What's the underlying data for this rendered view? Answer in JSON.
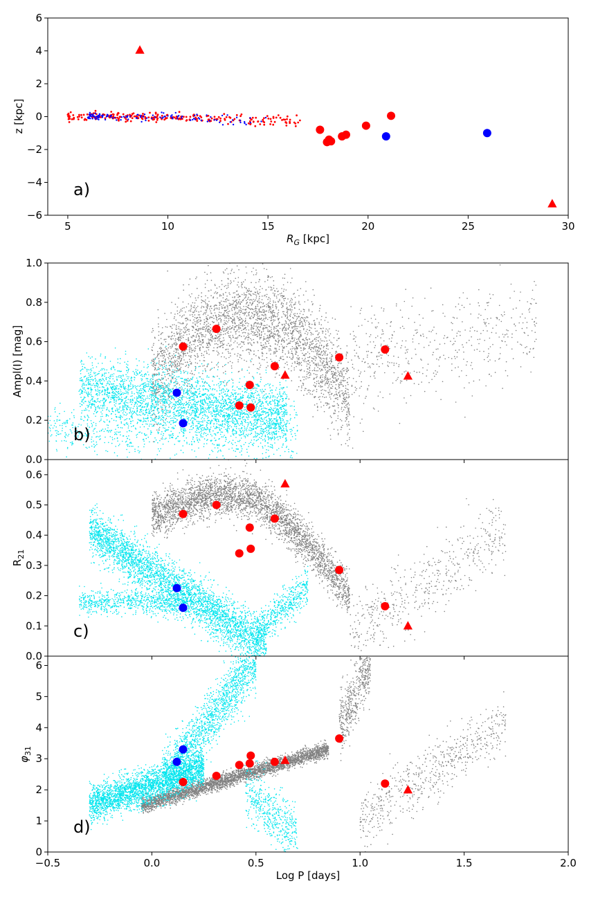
{
  "colors": {
    "background": "#cyan",
    "classical_cepheid_bg": "#808080",
    "anomalous_bg": "#00e5ee",
    "red_marker": "#ff0000",
    "blue_marker": "#0000ff"
  },
  "chart_data": [
    {
      "id": "a",
      "type": "scatter",
      "panel_label": "a)",
      "xlabel": "R_G [kpc]",
      "ylabel": "z [kpc]",
      "xlim": [
        4,
        30
      ],
      "ylim": [
        -6,
        6
      ],
      "xticks": [
        5,
        10,
        15,
        20,
        25,
        30
      ],
      "yticks": [
        -6,
        -4,
        -2,
        0,
        2,
        4,
        6
      ],
      "series": [
        {
          "marker": "circle",
          "color": "red",
          "size": "large",
          "points": [
            [
              17.6,
              -0.8
            ],
            [
              17.95,
              -1.55
            ],
            [
              18.05,
              -1.4
            ],
            [
              18.15,
              -1.5
            ],
            [
              18.7,
              -1.2
            ],
            [
              18.9,
              -1.1
            ],
            [
              19.9,
              -0.55
            ],
            [
              21.15,
              0.05
            ]
          ]
        },
        {
          "marker": "circle",
          "color": "blue",
          "size": "large",
          "points": [
            [
              20.9,
              -1.2
            ],
            [
              25.95,
              -1.0
            ]
          ]
        },
        {
          "marker": "triangle",
          "color": "red",
          "size": "large",
          "points": [
            [
              8.6,
              4.05
            ],
            [
              29.2,
              -5.3
            ]
          ]
        }
      ]
    },
    {
      "id": "b",
      "type": "scatter",
      "panel_label": "b)",
      "xlabel": "",
      "ylabel": "Ampl(I) [mag]",
      "xlim": [
        -0.5,
        2.0
      ],
      "ylim": [
        0.0,
        1.0
      ],
      "yticks": [
        0.0,
        0.2,
        0.4,
        0.6,
        0.8,
        1.0
      ],
      "series": [
        {
          "marker": "circle",
          "color": "red",
          "size": "large",
          "points": [
            [
              0.15,
              0.575
            ],
            [
              0.31,
              0.665
            ],
            [
              0.42,
              0.275
            ],
            [
              0.47,
              0.38
            ],
            [
              0.475,
              0.265
            ],
            [
              0.59,
              0.475
            ],
            [
              0.9,
              0.52
            ],
            [
              1.12,
              0.56
            ]
          ]
        },
        {
          "marker": "circle",
          "color": "blue",
          "size": "large",
          "points": [
            [
              0.12,
              0.34
            ],
            [
              0.15,
              0.185
            ]
          ]
        },
        {
          "marker": "triangle",
          "color": "red",
          "size": "large",
          "points": [
            [
              0.64,
              0.43
            ],
            [
              1.23,
              0.425
            ]
          ]
        }
      ]
    },
    {
      "id": "c",
      "type": "scatter",
      "panel_label": "c)",
      "xlabel": "",
      "ylabel": "R21",
      "xlim": [
        -0.5,
        2.0
      ],
      "ylim": [
        0.0,
        0.65
      ],
      "yticks": [
        0.0,
        0.1,
        0.2,
        0.3,
        0.4,
        0.5,
        0.6
      ],
      "series": [
        {
          "marker": "circle",
          "color": "red",
          "size": "large",
          "points": [
            [
              0.15,
              0.47
            ],
            [
              0.31,
              0.5
            ],
            [
              0.42,
              0.34
            ],
            [
              0.47,
              0.425
            ],
            [
              0.475,
              0.355
            ],
            [
              0.59,
              0.455
            ],
            [
              0.9,
              0.285
            ],
            [
              1.12,
              0.165
            ]
          ]
        },
        {
          "marker": "circle",
          "color": "blue",
          "size": "large",
          "points": [
            [
              0.12,
              0.225
            ],
            [
              0.15,
              0.16
            ]
          ]
        },
        {
          "marker": "triangle",
          "color": "red",
          "size": "large",
          "points": [
            [
              0.64,
              0.57
            ],
            [
              1.23,
              0.1
            ]
          ]
        }
      ]
    },
    {
      "id": "d",
      "type": "scatter",
      "panel_label": "d)",
      "xlabel": "Log P [days]",
      "ylabel": "φ31",
      "xlim": [
        -0.5,
        2.0
      ],
      "ylim": [
        0,
        6.3
      ],
      "xticks": [
        -0.5,
        0.0,
        0.5,
        1.0,
        1.5,
        2.0
      ],
      "yticks": [
        0,
        1,
        2,
        3,
        4,
        5,
        6
      ],
      "series": [
        {
          "marker": "circle",
          "color": "red",
          "size": "large",
          "points": [
            [
              0.15,
              2.25
            ],
            [
              0.31,
              2.45
            ],
            [
              0.42,
              2.8
            ],
            [
              0.47,
              2.85
            ],
            [
              0.475,
              3.1
            ],
            [
              0.59,
              2.9
            ],
            [
              0.9,
              3.65
            ],
            [
              1.12,
              2.2
            ]
          ]
        },
        {
          "marker": "circle",
          "color": "blue",
          "size": "large",
          "points": [
            [
              0.12,
              2.9
            ],
            [
              0.15,
              3.3
            ]
          ]
        },
        {
          "marker": "triangle",
          "color": "red",
          "size": "large",
          "points": [
            [
              0.64,
              2.95
            ],
            [
              1.23,
              2.0
            ]
          ]
        }
      ]
    }
  ]
}
